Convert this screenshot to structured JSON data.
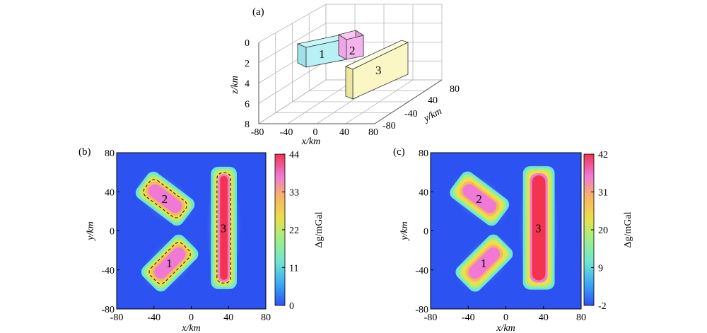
{
  "chart_data": [
    {
      "panel": "(a)",
      "type": "3d-scatter",
      "x_label": "x/km",
      "y_label": "y/km",
      "z_label": "z/km",
      "x_ticks": [
        "-80",
        "-40",
        "0",
        "40",
        "80"
      ],
      "y_ticks": [
        "-80",
        "-40",
        "40",
        "80"
      ],
      "z_ticks": [
        "0",
        "2",
        "4",
        "6",
        "8"
      ],
      "bodies": [
        {
          "label": "1",
          "color": "#b7f0f5"
        },
        {
          "label": "2",
          "color": "#f5b3ec"
        },
        {
          "label": "3",
          "color": "#fbf7c4"
        }
      ]
    },
    {
      "panel": "(b)",
      "type": "heatmap",
      "x_label": "x/km",
      "y_label": "y/km",
      "xlim": [
        -80,
        80
      ],
      "ylim": [
        -80,
        80
      ],
      "x_ticks": [
        "-80",
        "-40",
        "0",
        "40",
        "80"
      ],
      "y_ticks": [
        "80",
        "40",
        "0",
        "-40",
        "-80"
      ],
      "colorbar_label": "Δg/mGal",
      "colorbar_range": [
        0,
        44
      ],
      "colorbar_ticks": [
        "44",
        "33",
        "22",
        "11",
        "0"
      ],
      "colormap": [
        "#2d52f2",
        "#3ba8f4",
        "#6fe6d2",
        "#9af08a",
        "#e9e04a",
        "#f7b562",
        "#f078d6",
        "#f23450"
      ],
      "bodies": [
        {
          "label": "1",
          "cx": -23,
          "cy": -33,
          "length": 46,
          "width": 18,
          "angle": 45,
          "peak": 38
        },
        {
          "label": "2",
          "cx": -28,
          "cy": 33,
          "length": 46,
          "width": 18,
          "angle": -37,
          "peak": 36
        },
        {
          "label": "3",
          "cx": 35,
          "cy": 3,
          "length": 116,
          "width": 12,
          "angle": 90,
          "peak": 44
        }
      ]
    },
    {
      "panel": "(c)",
      "type": "heatmap",
      "x_label": "x/km",
      "y_label": "y/km",
      "xlim": [
        -80,
        80
      ],
      "ylim": [
        -80,
        80
      ],
      "x_ticks": [
        "-80",
        "-40",
        "0",
        "40",
        "80"
      ],
      "y_ticks": [
        "80",
        "40",
        "0",
        "-40",
        "-80"
      ],
      "colorbar_label": "Δg/mGal",
      "colorbar_range": [
        -2,
        42
      ],
      "colorbar_ticks": [
        "42",
        "31",
        "20",
        "9",
        "-2"
      ],
      "colormap": [
        "#2d52f2",
        "#3ba8f4",
        "#6fe6d2",
        "#9af08a",
        "#e9e04a",
        "#f7b562",
        "#f078d6",
        "#f23450"
      ],
      "bodies": [
        {
          "label": "1",
          "cx": -23,
          "cy": -33,
          "length": 46,
          "width": 18,
          "angle": 45,
          "peak": 34
        },
        {
          "label": "2",
          "cx": -28,
          "cy": 33,
          "length": 46,
          "width": 18,
          "angle": -37,
          "peak": 33
        },
        {
          "label": "3",
          "cx": 35,
          "cy": 3,
          "length": 116,
          "width": 18,
          "angle": 90,
          "peak": 42
        }
      ]
    }
  ]
}
